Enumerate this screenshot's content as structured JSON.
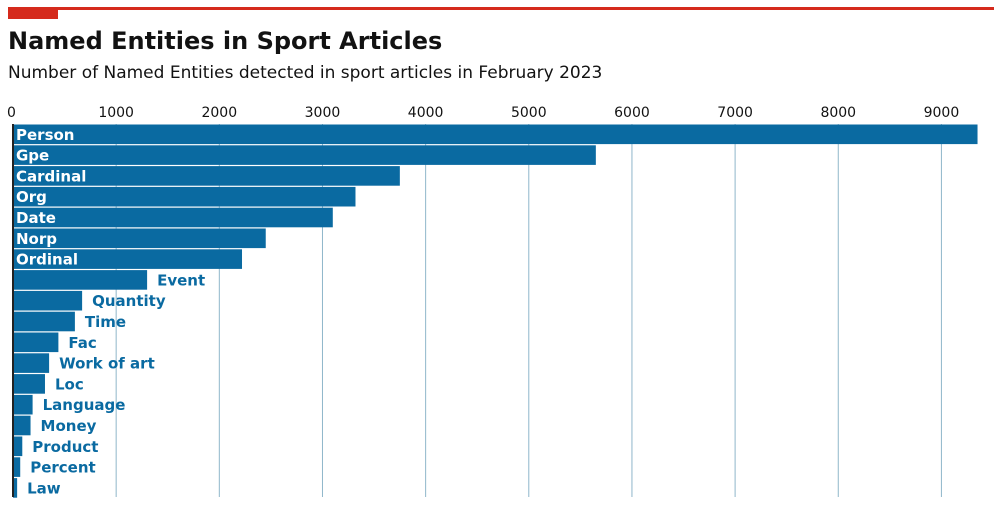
{
  "header": {
    "title": "Named Entities in Sport Articles",
    "subtitle": "Number of Named Entities detected in sport articles in February 2023"
  },
  "colors": {
    "accent": "#d52a1c",
    "bar": "#0a6aa1",
    "grid": "#8fb6ca",
    "axis": "#222222",
    "text_on_bar": "#ffffff"
  },
  "chart_data": {
    "type": "bar",
    "orientation": "horizontal",
    "title": "Named Entities in Sport Articles",
    "subtitle": "Number of Named Entities detected in sport articles in February 2023",
    "xlabel": "",
    "ylabel": "",
    "xlim": [
      0,
      9500
    ],
    "xticks": [
      0,
      1000,
      2000,
      3000,
      4000,
      5000,
      6000,
      7000,
      8000,
      9000
    ],
    "x_axis_position": "top",
    "grid": true,
    "legend": false,
    "categories": [
      "Person",
      "Gpe",
      "Cardinal",
      "Org",
      "Date",
      "Norp",
      "Ordinal",
      "Event",
      "Quantity",
      "Time",
      "Fac",
      "Work of art",
      "Loc",
      "Language",
      "Money",
      "Product",
      "Percent",
      "Law"
    ],
    "values": [
      9350,
      5650,
      3750,
      3320,
      3100,
      2450,
      2220,
      1300,
      670,
      600,
      440,
      350,
      310,
      190,
      170,
      90,
      70,
      40
    ]
  }
}
